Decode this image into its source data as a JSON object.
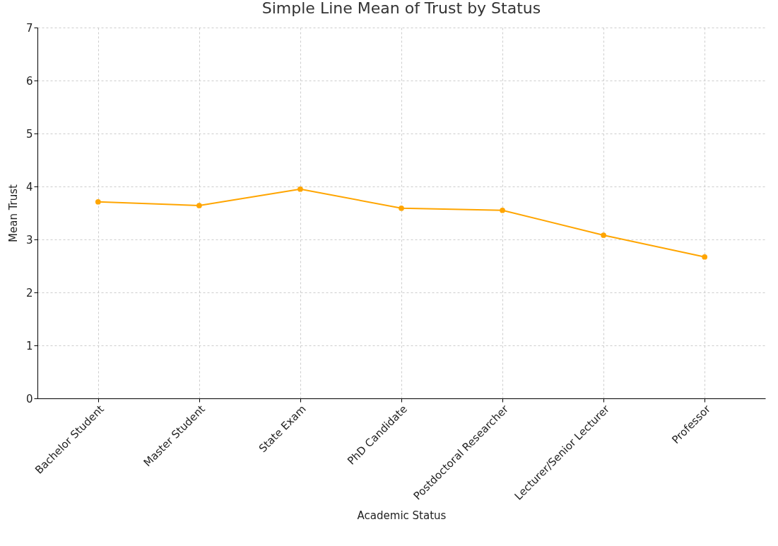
{
  "chart_data": {
    "type": "line",
    "title": "Simple Line Mean of Trust by Status",
    "xlabel": "Academic Status",
    "ylabel": "Mean Trust",
    "categories": [
      "Bachelor Student",
      "Master Student",
      "State Exam",
      "PhD Candidate",
      "Postdoctoral Researcher",
      "Lecturer/Senior Lecturer",
      "Professor"
    ],
    "series": [
      {
        "color": "#ffa500",
        "values": [
          3.71,
          3.64,
          3.95,
          3.59,
          3.55,
          3.08,
          2.67
        ]
      }
    ],
    "ylim": [
      0,
      7
    ],
    "yticks": [
      0,
      1,
      2,
      3,
      4,
      5,
      6,
      7
    ],
    "grid": true,
    "marker": "circle",
    "line_style": "solid",
    "legend": false
  }
}
